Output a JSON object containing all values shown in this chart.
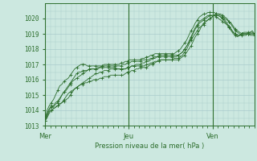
{
  "title": "",
  "xlabel": "Pression niveau de la mer( hPa )",
  "ylabel": "",
  "bg_color": "#cce8e0",
  "grid_major_color": "#aacccc",
  "grid_minor_color": "#bbdddd",
  "line_color": "#2d6e2d",
  "label_color": "#2d6e2d",
  "ylim": [
    1013,
    1021
  ],
  "yticks": [
    1013,
    1014,
    1015,
    1016,
    1017,
    1018,
    1019,
    1020
  ],
  "day_labels": [
    "Mer",
    "Jeu",
    "Ven"
  ],
  "day_positions": [
    0.0,
    0.4,
    0.8
  ],
  "vline_positions": [
    0.0,
    0.4,
    0.8
  ],
  "total_points": 100,
  "series": [
    [
      1013.3,
      1013.8,
      1014.1,
      1014.3,
      1014.2,
      1014.4,
      1014.5,
      1014.7,
      1015.0,
      1015.2,
      1015.4,
      1015.6,
      1015.8,
      1016.0,
      1016.2,
      1016.4,
      1016.5,
      1016.5,
      1016.6,
      1016.6,
      1016.6,
      1016.7,
      1016.7,
      1016.7,
      1016.7,
      1016.7,
      1016.8,
      1016.8,
      1016.8,
      1016.8,
      1016.8,
      1016.8,
      1016.8,
      1016.8,
      1016.7,
      1016.7,
      1016.7,
      1016.7,
      1016.7,
      1016.8,
      1016.8,
      1016.9,
      1016.9,
      1016.9,
      1016.9,
      1016.9,
      1016.9,
      1016.9,
      1017.0,
      1017.0,
      1017.1,
      1017.1,
      1017.2,
      1017.2,
      1017.3,
      1017.3,
      1017.3,
      1017.3,
      1017.3,
      1017.3,
      1017.3,
      1017.3,
      1017.3,
      1017.3,
      1017.4,
      1017.5,
      1017.6,
      1017.8,
      1018.0,
      1018.2,
      1018.5,
      1018.8,
      1019.0,
      1019.2,
      1019.5,
      1019.7,
      1019.8,
      1019.9,
      1020.0,
      1020.1,
      1020.2,
      1020.3,
      1020.3,
      1020.3,
      1020.2,
      1020.1,
      1020.0,
      1019.8,
      1019.6,
      1019.4,
      1019.2,
      1019.1,
      1019.0,
      1018.9,
      1018.9,
      1018.9,
      1019.0,
      1019.1,
      1019.2,
      1019.0
    ],
    [
      1013.3,
      1013.5,
      1013.8,
      1014.0,
      1014.1,
      1014.2,
      1014.3,
      1014.4,
      1014.5,
      1014.6,
      1014.7,
      1014.8,
      1015.0,
      1015.2,
      1015.4,
      1015.5,
      1015.6,
      1015.7,
      1015.7,
      1015.8,
      1015.8,
      1015.9,
      1015.9,
      1016.0,
      1016.0,
      1016.0,
      1016.1,
      1016.1,
      1016.2,
      1016.2,
      1016.2,
      1016.3,
      1016.3,
      1016.3,
      1016.3,
      1016.3,
      1016.3,
      1016.3,
      1016.4,
      1016.5,
      1016.5,
      1016.6,
      1016.6,
      1016.7,
      1016.7,
      1016.8,
      1016.8,
      1016.8,
      1016.8,
      1016.9,
      1017.0,
      1017.0,
      1017.1,
      1017.2,
      1017.2,
      1017.3,
      1017.3,
      1017.3,
      1017.3,
      1017.3,
      1017.3,
      1017.4,
      1017.4,
      1017.4,
      1017.5,
      1017.6,
      1017.8,
      1018.0,
      1018.3,
      1018.6,
      1018.8,
      1019.0,
      1019.2,
      1019.4,
      1019.5,
      1019.6,
      1019.8,
      1019.9,
      1020.0,
      1020.1,
      1020.2,
      1020.2,
      1020.2,
      1020.1,
      1020.0,
      1019.8,
      1019.6,
      1019.4,
      1019.2,
      1019.0,
      1018.9,
      1018.8,
      1018.9,
      1019.0,
      1019.1,
      1019.1,
      1019.1,
      1019.1,
      1019.1,
      1019.0
    ],
    [
      1013.3,
      1013.6,
      1013.9,
      1014.0,
      1014.1,
      1014.2,
      1014.3,
      1014.4,
      1014.5,
      1014.7,
      1014.9,
      1015.1,
      1015.2,
      1015.3,
      1015.4,
      1015.5,
      1015.6,
      1015.7,
      1015.8,
      1015.9,
      1016.0,
      1016.1,
      1016.2,
      1016.3,
      1016.4,
      1016.4,
      1016.5,
      1016.5,
      1016.6,
      1016.6,
      1016.6,
      1016.7,
      1016.7,
      1016.7,
      1016.7,
      1016.7,
      1016.7,
      1016.7,
      1016.7,
      1016.8,
      1016.8,
      1016.9,
      1016.9,
      1017.0,
      1017.0,
      1017.0,
      1017.1,
      1017.1,
      1017.2,
      1017.2,
      1017.3,
      1017.4,
      1017.4,
      1017.5,
      1017.5,
      1017.5,
      1017.5,
      1017.5,
      1017.5,
      1017.5,
      1017.5,
      1017.5,
      1017.5,
      1017.6,
      1017.7,
      1017.8,
      1018.0,
      1018.2,
      1018.4,
      1018.7,
      1019.0,
      1019.3,
      1019.5,
      1019.7,
      1019.8,
      1019.9,
      1020.0,
      1020.1,
      1020.2,
      1020.2,
      1020.2,
      1020.2,
      1020.2,
      1020.1,
      1020.0,
      1019.9,
      1019.7,
      1019.5,
      1019.3,
      1019.1,
      1019.0,
      1018.9,
      1018.9,
      1019.0,
      1019.0,
      1019.0,
      1019.0,
      1019.0,
      1019.0,
      1019.0
    ],
    [
      1013.3,
      1013.7,
      1014.0,
      1014.2,
      1014.3,
      1014.5,
      1014.6,
      1014.8,
      1015.0,
      1015.2,
      1015.3,
      1015.5,
      1015.7,
      1015.9,
      1016.0,
      1016.1,
      1016.2,
      1016.3,
      1016.4,
      1016.5,
      1016.6,
      1016.7,
      1016.7,
      1016.7,
      1016.7,
      1016.8,
      1016.8,
      1016.9,
      1016.9,
      1016.9,
      1016.9,
      1016.9,
      1016.9,
      1016.9,
      1016.9,
      1016.9,
      1016.9,
      1017.0,
      1017.0,
      1017.1,
      1017.1,
      1017.2,
      1017.2,
      1017.2,
      1017.2,
      1017.2,
      1017.3,
      1017.3,
      1017.3,
      1017.3,
      1017.4,
      1017.4,
      1017.5,
      1017.5,
      1017.6,
      1017.6,
      1017.6,
      1017.6,
      1017.6,
      1017.6,
      1017.6,
      1017.6,
      1017.6,
      1017.6,
      1017.7,
      1017.8,
      1018.0,
      1018.2,
      1018.5,
      1018.8,
      1019.1,
      1019.4,
      1019.6,
      1019.8,
      1019.9,
      1020.0,
      1020.1,
      1020.2,
      1020.2,
      1020.2,
      1020.2,
      1020.1,
      1020.0,
      1019.9,
      1019.8,
      1019.7,
      1019.6,
      1019.5,
      1019.3,
      1019.1,
      1019.0,
      1018.9,
      1018.9,
      1019.0,
      1019.0,
      1019.0,
      1019.0,
      1019.0,
      1019.0,
      1019.0
    ],
    [
      1013.3,
      1014.0,
      1014.3,
      1014.5,
      1014.7,
      1015.0,
      1015.3,
      1015.6,
      1015.7,
      1015.9,
      1016.0,
      1016.1,
      1016.3,
      1016.5,
      1016.7,
      1016.8,
      1016.9,
      1017.0,
      1017.0,
      1017.0,
      1016.9,
      1016.9,
      1016.9,
      1016.9,
      1016.9,
      1016.9,
      1016.9,
      1016.9,
      1017.0,
      1017.0,
      1017.0,
      1017.0,
      1017.0,
      1017.0,
      1017.0,
      1017.0,
      1017.1,
      1017.1,
      1017.2,
      1017.2,
      1017.3,
      1017.3,
      1017.3,
      1017.3,
      1017.3,
      1017.3,
      1017.4,
      1017.4,
      1017.5,
      1017.5,
      1017.6,
      1017.6,
      1017.7,
      1017.7,
      1017.7,
      1017.7,
      1017.7,
      1017.7,
      1017.7,
      1017.7,
      1017.7,
      1017.7,
      1017.8,
      1017.9,
      1018.0,
      1018.2,
      1018.4,
      1018.6,
      1018.9,
      1019.2,
      1019.4,
      1019.7,
      1019.9,
      1020.1,
      1020.2,
      1020.3,
      1020.3,
      1020.4,
      1020.4,
      1020.4,
      1020.4,
      1020.3,
      1020.3,
      1020.2,
      1020.1,
      1020.0,
      1019.9,
      1019.8,
      1019.7,
      1019.5,
      1019.3,
      1019.2,
      1019.1,
      1019.0,
      1019.0,
      1019.0,
      1019.0,
      1018.9,
      1018.9,
      1018.9
    ]
  ]
}
